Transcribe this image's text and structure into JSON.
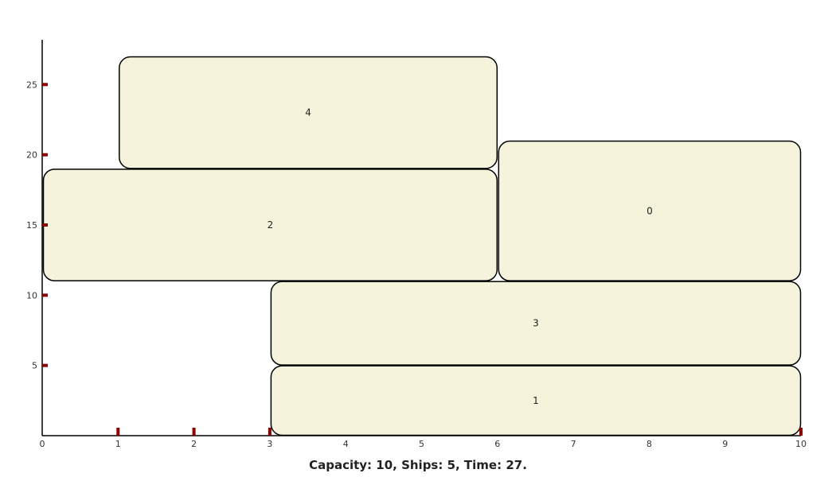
{
  "chart_data": {
    "type": "gantt-rect",
    "caption": "Capacity: 10, Ships: 5, Time: 27.",
    "xlim": [
      0,
      10
    ],
    "ylim": [
      0,
      27
    ],
    "x_ticks": [
      0,
      1,
      2,
      3,
      4,
      5,
      6,
      7,
      8,
      9,
      10
    ],
    "y_ticks": [
      5,
      10,
      15,
      20,
      25
    ],
    "x_marks": [
      1,
      2,
      3,
      10
    ],
    "ships": [
      {
        "label": "0",
        "x0": 6,
        "x1": 10,
        "y0": 11,
        "y1": 21
      },
      {
        "label": "1",
        "x0": 3,
        "x1": 10,
        "y0": 0,
        "y1": 5
      },
      {
        "label": "2",
        "x0": 0,
        "x1": 6,
        "y0": 11,
        "y1": 19
      },
      {
        "label": "3",
        "x0": 3,
        "x1": 10,
        "y0": 5,
        "y1": 11
      },
      {
        "label": "4",
        "x0": 1,
        "x1": 6,
        "y0": 19,
        "y1": 27
      }
    ],
    "colors": {
      "fill": "#f5f3dc",
      "stroke": "#000000",
      "tick_mark": "#8b0000"
    }
  }
}
